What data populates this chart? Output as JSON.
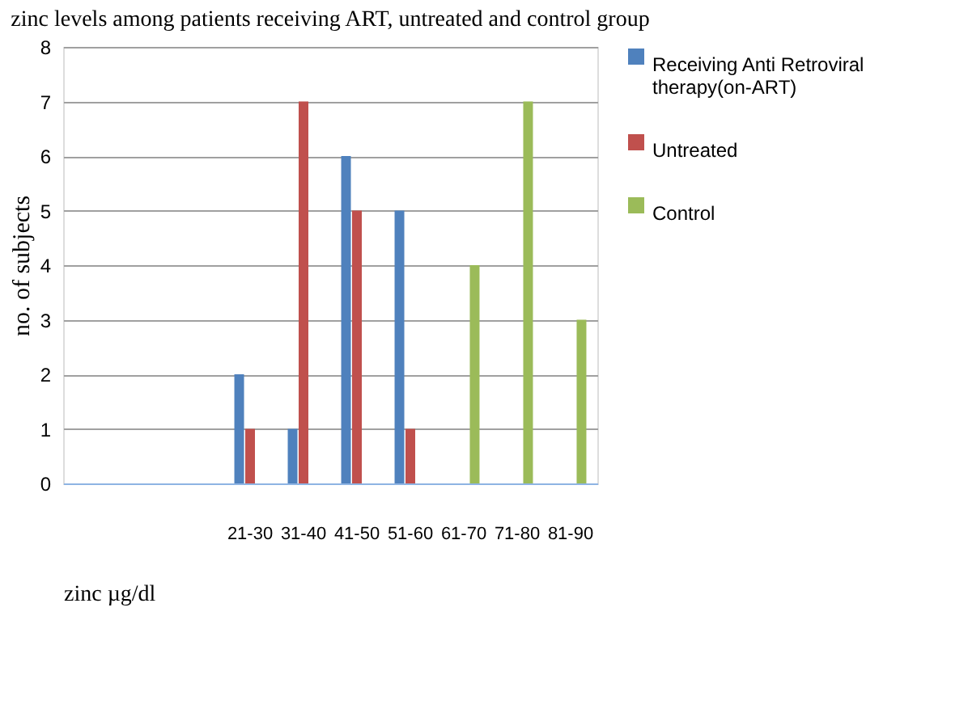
{
  "chart_data": {
    "type": "bar",
    "title": "zinc levels among patients receiving ART, untreated and control group",
    "xlabel": "zinc µg/dl",
    "ylabel": "no. of subjects",
    "categories": [
      null,
      null,
      null,
      "21-30",
      "31-40",
      "41-50",
      "51-60",
      "61-70",
      "71-80",
      "81-90"
    ],
    "series": [
      {
        "name": "Receiving Anti Retroviral therapy(on-ART)",
        "color": "#4f81bd",
        "values": [
          0,
          0,
          0,
          2,
          1,
          6,
          5,
          0,
          0,
          0
        ]
      },
      {
        "name": "Untreated",
        "color": "#c0504d",
        "values": [
          0,
          0,
          0,
          1,
          7,
          5,
          1,
          0,
          0,
          0
        ]
      },
      {
        "name": "Control",
        "color": "#9bbb59",
        "values": [
          0,
          0,
          0,
          0,
          0,
          0,
          0,
          4,
          7,
          3
        ]
      }
    ],
    "ylim": [
      0,
      8
    ],
    "yticks": [
      0,
      1,
      2,
      3,
      4,
      5,
      6,
      7,
      8
    ],
    "grid": "y",
    "legend": "right"
  }
}
